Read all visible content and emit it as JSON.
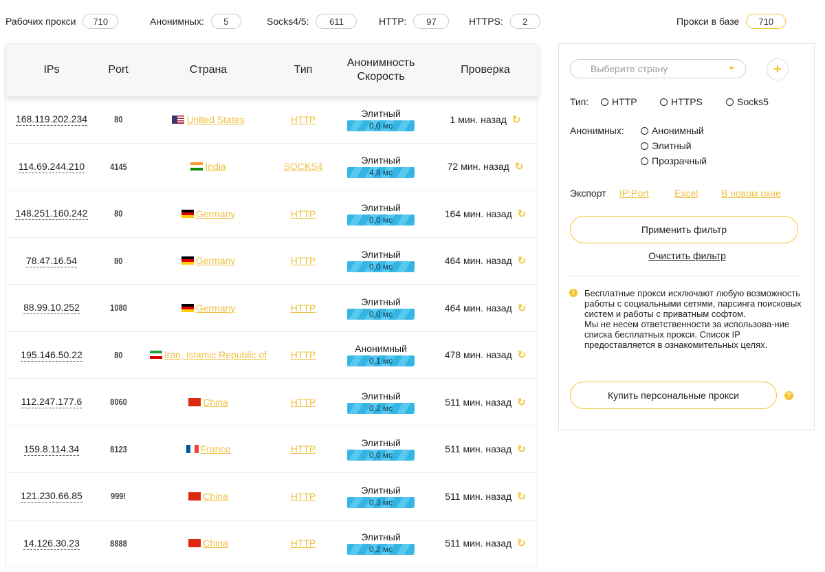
{
  "stats": {
    "working_label": "Рабочих прокси",
    "working_value": "710",
    "anon_label": "Анонимных:",
    "anon_value": "5",
    "socks_label": "Socks4/5:",
    "socks_value": "611",
    "http_label": "HTTP:",
    "http_value": "97",
    "https_label": "HTTPS:",
    "https_value": "2",
    "db_label": "Прокси в базе",
    "db_value": "710"
  },
  "table": {
    "headers": {
      "ip": "IPs",
      "port": "Port",
      "country": "Страна",
      "type": "Тип",
      "anon_line1": "Анонимность",
      "anon_line2": "Скорость",
      "check": "Проверка"
    },
    "rows": [
      {
        "ip": "168.119.202.234",
        "port": "80",
        "flag": "us",
        "country": "United States",
        "type": "HTTP",
        "anonymity": "Элитный",
        "speed": "0,0 мс",
        "checked": "1 мин. назад"
      },
      {
        "ip": "114.69.244.210",
        "port": "4145",
        "flag": "in",
        "country": "India",
        "type": "SOCKS4",
        "anonymity": "Элитный",
        "speed": "4,8 мс",
        "checked": "72 мин. назад"
      },
      {
        "ip": "148.251.160.242",
        "port": "80",
        "flag": "de",
        "country": "Germany",
        "type": "HTTP",
        "anonymity": "Элитный",
        "speed": "0,0 мс",
        "checked": "164 мин. назад"
      },
      {
        "ip": "78.47.16.54",
        "port": "80",
        "flag": "de",
        "country": "Germany",
        "type": "HTTP",
        "anonymity": "Элитный",
        "speed": "0,0 мс",
        "checked": "464 мин. назад"
      },
      {
        "ip": "88.99.10.252",
        "port": "1080",
        "flag": "de",
        "country": "Germany",
        "type": "HTTP",
        "anonymity": "Элитный",
        "speed": "0,0 мс",
        "checked": "464 мин. назад"
      },
      {
        "ip": "195.146.50.22",
        "port": "80",
        "flag": "ir",
        "country": "Iran, Islamic Republic of",
        "type": "HTTP",
        "anonymity": "Анонимный",
        "speed": "0,1 мс",
        "checked": "478 мин. назад"
      },
      {
        "ip": "112.247.177.6",
        "port": "8060",
        "flag": "cn",
        "country": "China",
        "type": "HTTP",
        "anonymity": "Элитный",
        "speed": "0,2 мс",
        "checked": "511 мин. назад"
      },
      {
        "ip": "159.8.114.34",
        "port": "8123",
        "flag": "fr",
        "country": "France",
        "type": "HTTP",
        "anonymity": "Элитный",
        "speed": "0,0 мс",
        "checked": "511 мин. назад"
      },
      {
        "ip": "121.230.66.85",
        "port": "999!",
        "flag": "cn",
        "country": "China",
        "type": "HTTP",
        "anonymity": "Элитный",
        "speed": "0,3 мс",
        "checked": "511 мин. назад"
      },
      {
        "ip": "14.126.30.23",
        "port": "8888",
        "flag": "cn",
        "country": "China",
        "type": "HTTP",
        "anonymity": "Элитный",
        "speed": "0,2 мс",
        "checked": "511 мин. назад"
      }
    ],
    "refresh_icon": "refresh-icon"
  },
  "filter": {
    "country_placeholder": "Выберите страну",
    "add_icon": "plus-icon",
    "type_label": "Тип:",
    "type_options": [
      "HTTP",
      "HTTPS",
      "Socks5"
    ],
    "anon_label": "Анонимных:",
    "anon_options": [
      "Анонимный",
      "Элитный",
      "Прозрачный"
    ],
    "export_label": "Экспорт",
    "export_links": [
      "IP:Port",
      "Excel",
      "В новом окне"
    ],
    "apply_button": "Применить фильтр",
    "clear_link": "Очистить фильтр",
    "notice": "Бесплатные прокси исключают любую возможность работы с социальными сетями, парсинга поисковых систем и работы с приватным софтом.\nМы не несем ответственности за использова-ние списка бесплатных прокси. Список IP предоставляется в ознакомительных целях.",
    "buy_button": "Купить персональные прокси",
    "accent_color": "#f4c430",
    "link_color": "#f0c040",
    "speed_bar_color": "#34b6e5"
  }
}
